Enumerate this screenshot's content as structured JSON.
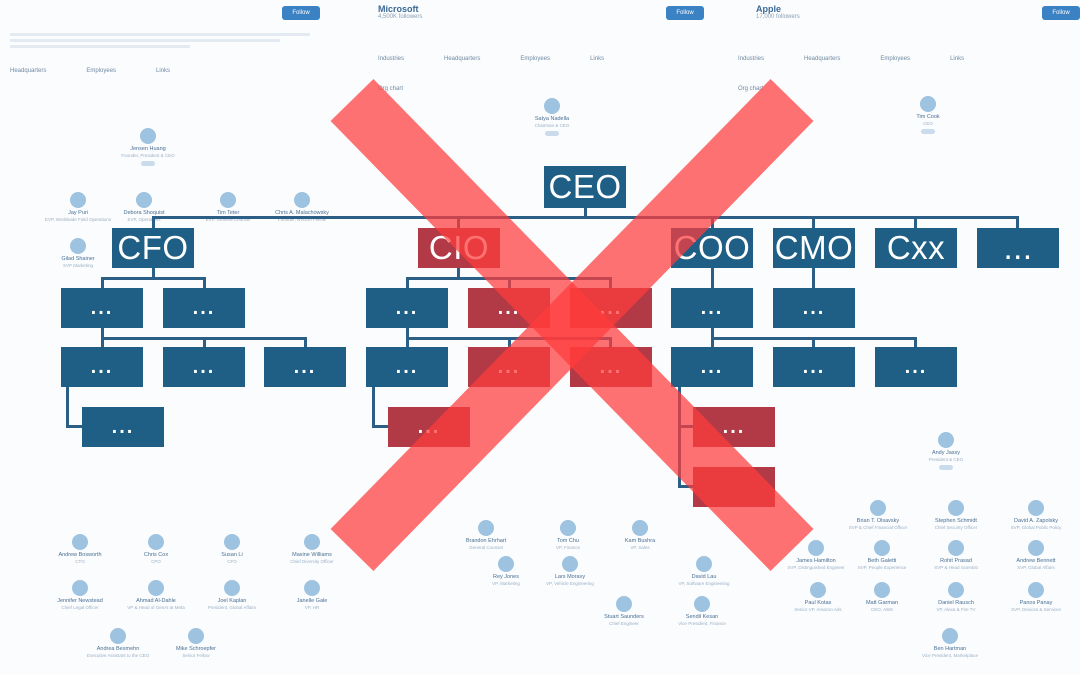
{
  "background": {
    "follow_label": "Follow",
    "company_1": {
      "name": "",
      "followers": ""
    },
    "company_2": {
      "name": "Microsoft",
      "followers": "4,500K followers"
    },
    "company_3": {
      "name": "Apple",
      "followers": "17,000 followers"
    },
    "org_chart_label": "Org chart",
    "meta_labels": [
      "Industries",
      "Headquarters",
      "Employees",
      "Links"
    ],
    "people": [
      {
        "name": "Jensen Huang",
        "title": "Founder, President & CEO"
      },
      {
        "name": "Satya Nadella",
        "title": "Chairman & CEO"
      },
      {
        "name": "Tim Cook",
        "title": "CEO"
      },
      {
        "name": "Debora Shoquist",
        "title": "EVP, Operations"
      },
      {
        "name": "Tim Teter",
        "title": "EVP, General Counsel"
      },
      {
        "name": "Chris A. Malachowsky",
        "title": "Founder, NVIDIA Fellow"
      },
      {
        "name": "Jay Puri",
        "title": "EVP, Worldwide Field Operations"
      },
      {
        "name": "Gilad Shainer",
        "title": "SVP Marketing"
      },
      {
        "name": "Andrew Bosworth",
        "title": "CTO"
      },
      {
        "name": "Chris Cox",
        "title": "CPO"
      },
      {
        "name": "Susan Li",
        "title": "CFO"
      },
      {
        "name": "Maxine Williams",
        "title": "Chief Diversity Officer"
      },
      {
        "name": "Jennifer Newstead",
        "title": "Chief Legal Officer"
      },
      {
        "name": "Ahmad Al-Dahle",
        "title": "VP & Head of GenAI at Meta"
      },
      {
        "name": "Joel Kaplan",
        "title": "President, Global Affairs"
      },
      {
        "name": "Janelle Gale",
        "title": "VP, HR"
      },
      {
        "name": "Andrea Besmehn",
        "title": "Executive Assistant to the CEO"
      },
      {
        "name": "Mike Schroepfer",
        "title": "Senior Fellow"
      },
      {
        "name": "Brandon Ehrhart",
        "title": "General Counsel"
      },
      {
        "name": "Tom Chu",
        "title": "VP, Finance"
      },
      {
        "name": "Kam Bushra",
        "title": "VP, Sales"
      },
      {
        "name": "Rey Jones",
        "title": "VP, Marketing"
      },
      {
        "name": "Lars Moravy",
        "title": "VP, Vehicle Engineering"
      },
      {
        "name": "David Lau",
        "title": "VP, Software Engineering"
      },
      {
        "name": "Stuart Saunders",
        "title": "Chief Engineer"
      },
      {
        "name": "Sendil Kesan",
        "title": "Vice President, Finance"
      },
      {
        "name": "Andy Jassy",
        "title": "President & CEO"
      },
      {
        "name": "Brian T. Olsavsky",
        "title": "SVP & Chief Financial Officer"
      },
      {
        "name": "Stephen Schmidt",
        "title": "Chief Security Officer"
      },
      {
        "name": "David A. Zapolsky",
        "title": "SVP, Global Public Policy"
      },
      {
        "name": "James Hamilton",
        "title": "SVP, Distinguished Engineer"
      },
      {
        "name": "Beth Galetti",
        "title": "SVP, People Experience"
      },
      {
        "name": "Rohit Prasad",
        "title": "SVP & Head Scientist"
      },
      {
        "name": "Andrew Bennett",
        "title": "SVP, Global Affairs"
      },
      {
        "name": "Paul Kotas",
        "title": "Senior VP, Amazon Ads"
      },
      {
        "name": "Matt Garman",
        "title": "CEO, AWS"
      },
      {
        "name": "Daniel Rausch",
        "title": "VP, Alexa & Fire TV"
      },
      {
        "name": "Panos Panay",
        "title": "SVP, Devices & Services"
      },
      {
        "name": "Ben Hartman",
        "title": "Vice President, Marketplace"
      }
    ]
  },
  "org_chart": {
    "ceo": "CEO",
    "c_suite": [
      "CFO",
      "CIO",
      "COO",
      "CMO",
      "Cxx",
      "..."
    ],
    "placeholder": "...",
    "crossed_out": true
  },
  "colors": {
    "box": "#1f5f86",
    "box_crossed": "#b23a47",
    "cross": "#ff3b3b"
  }
}
